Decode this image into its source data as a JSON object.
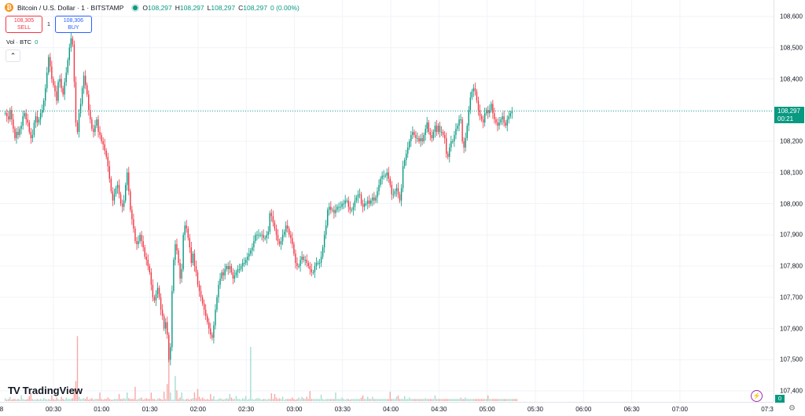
{
  "header": {
    "symbol_title": "Bitcoin / U.S. Dollar · 1 · BITSTAMP",
    "ohlc": [
      {
        "k": "O",
        "v": "108,297"
      },
      {
        "k": "H",
        "v": "108,297"
      },
      {
        "k": "L",
        "v": "108,297"
      },
      {
        "k": "C",
        "v": "108,297"
      }
    ],
    "change": "0 (0.00%)",
    "icon": "bitcoin-icon"
  },
  "trade": {
    "sell_price": "108,305",
    "sell_label": "SELL",
    "spread": "1",
    "buy_price": "108,306",
    "buy_label": "BUY"
  },
  "volume": {
    "label": "Vol · BTC",
    "value": "0",
    "axis_label": "0"
  },
  "last_price": {
    "price": "108,297",
    "countdown": "00:21"
  },
  "brand": "TradingView",
  "colors": {
    "up": "#089981",
    "down": "#f23645",
    "vol_up": "#a7dccf",
    "vol_down": "#f7a9a7"
  },
  "price_axis_labels": [
    "108,600",
    "108,500",
    "108,400",
    "108,300",
    "108,200",
    "108,100",
    "108,000",
    "107,900",
    "107,800",
    "107,700",
    "107,600",
    "107,500",
    "107,400"
  ],
  "time_axis": {
    "edge_left": "8",
    "labels": [
      "00:30",
      "01:00",
      "01:30",
      "02:00",
      "02:30",
      "03:00",
      "03:30",
      "04:00",
      "04:30",
      "05:00",
      "05:30",
      "06:00",
      "06:30",
      "07:00"
    ],
    "edge_right": "07:3"
  },
  "chart_data": {
    "type": "candlestick",
    "title": "Bitcoin / U.S. Dollar · 1 · BITSTAMP",
    "ylim": [
      107360,
      108640
    ],
    "start_time": "00:08",
    "interval_minutes": 1,
    "closes": [
      108290,
      108280,
      108270,
      108300,
      108270,
      108240,
      108210,
      108230,
      108220,
      108240,
      108250,
      108280,
      108290,
      108270,
      108260,
      108230,
      108210,
      108220,
      108260,
      108280,
      108260,
      108270,
      108290,
      108300,
      108330,
      108370,
      108420,
      108470,
      108440,
      108400,
      108380,
      108360,
      108330,
      108390,
      108400,
      108370,
      108350,
      108390,
      108420,
      108460,
      108500,
      108530,
      108510,
      108390,
      108260,
      108230,
      108290,
      108320,
      108370,
      108410,
      108380,
      108350,
      108300,
      108270,
      108240,
      108230,
      108250,
      108270,
      108230,
      108220,
      108200,
      108190,
      108170,
      108150,
      108120,
      108080,
      108040,
      108010,
      108030,
      108050,
      108060,
      108030,
      108000,
      107990,
      108010,
      108060,
      108100,
      108040,
      107980,
      107950,
      107920,
      107880,
      107870,
      107880,
      107900,
      107880,
      107860,
      107830,
      107820,
      107800,
      107780,
      107740,
      107700,
      107690,
      107710,
      107730,
      107700,
      107660,
      107640,
      107600,
      107620,
      107580,
      107500,
      107540,
      107720,
      107820,
      107870,
      107850,
      107810,
      107760,
      107790,
      107900,
      107930,
      107920,
      107890,
      107860,
      107810,
      107840,
      107800,
      107780,
      107740,
      107720,
      107700,
      107680,
      107660,
      107640,
      107620,
      107600,
      107580,
      107570,
      107610,
      107660,
      107700,
      107740,
      107760,
      107780,
      107770,
      107790,
      107800,
      107790,
      107800,
      107780,
      107760,
      107770,
      107780,
      107790,
      107790,
      107800,
      107810,
      107810,
      107820,
      107830,
      107840,
      107850,
      107860,
      107880,
      107900,
      107900,
      107900,
      107900,
      107900,
      107890,
      107890,
      107900,
      107910,
      107970,
      107960,
      107940,
      107920,
      107900,
      107880,
      107870,
      107880,
      107900,
      107910,
      107930,
      107920,
      107900,
      107890,
      107870,
      107840,
      107810,
      107800,
      107800,
      107820,
      107830,
      107820,
      107820,
      107810,
      107800,
      107790,
      107780,
      107780,
      107800,
      107810,
      107810,
      107810,
      107830,
      107860,
      107900,
      107930,
      107980,
      107990,
      107980,
      107980,
      107970,
      107980,
      107990,
      107990,
      107990,
      108000,
      108000,
      108010,
      108010,
      107990,
      107980,
      107980,
      107990,
      108010,
      108020,
      108030,
      108030,
      108000,
      107990,
      108000,
      108000,
      108010,
      108000,
      108010,
      108020,
      108010,
      108020,
      108040,
      108060,
      108080,
      108090,
      108090,
      108090,
      108100,
      108080,
      108060,
      108030,
      108030,
      108040,
      108050,
      108030,
      108010,
      108050,
      108120,
      108140,
      108160,
      108180,
      108200,
      108220,
      108230,
      108220,
      108210,
      108210,
      108200,
      108210,
      108200,
      108220,
      108240,
      108260,
      108230,
      108220,
      108210,
      108230,
      108250,
      108230,
      108250,
      108230,
      108230,
      108220,
      108210,
      108160,
      108150,
      108180,
      108200,
      108200,
      108220,
      108240,
      108250,
      108270,
      108270,
      108200,
      108180,
      108210,
      108250,
      108300,
      108340,
      108360,
      108370,
      108360,
      108330,
      108300,
      108280,
      108270,
      108260,
      108290,
      108300,
      108290,
      108300,
      108320,
      108290,
      108270,
      108260,
      108250,
      108260,
      108270,
      108280,
      108260,
      108250,
      108270,
      108280,
      108290,
      108297
    ],
    "volumes": [
      4,
      2,
      3,
      6,
      2,
      3,
      3,
      2,
      3,
      2,
      8,
      3,
      2,
      2,
      3,
      7,
      11,
      3,
      2,
      2,
      3,
      2,
      3,
      2,
      4,
      3,
      2,
      3,
      2,
      8,
      3,
      2,
      5,
      3,
      2,
      6,
      3,
      2,
      5,
      3,
      3,
      3,
      4,
      18,
      28,
      91,
      6,
      3,
      3,
      4,
      3,
      6,
      2,
      3,
      4,
      2,
      3,
      3,
      3,
      12,
      3,
      2,
      3,
      3,
      5,
      3,
      2,
      2,
      3,
      3,
      3,
      10,
      3,
      3,
      4,
      3,
      12,
      4,
      3,
      3,
      3,
      20,
      2,
      3,
      4,
      5,
      2,
      3,
      4,
      3,
      3,
      12,
      3,
      3,
      2,
      3,
      4,
      3,
      2,
      13,
      3,
      24,
      80,
      12,
      2,
      2,
      35,
      15,
      3,
      5,
      12,
      3,
      2,
      3,
      3,
      2,
      3,
      4,
      12,
      4,
      17,
      6,
      3,
      5,
      3,
      2,
      3,
      2,
      10,
      3,
      7,
      2,
      2,
      3,
      4,
      3,
      2,
      3,
      4,
      3,
      10,
      5,
      3,
      3,
      7,
      3,
      3,
      2,
      4,
      3,
      7,
      2,
      3,
      76,
      3,
      2,
      3,
      4,
      4,
      3,
      2,
      3,
      3,
      2,
      3,
      3,
      11,
      3,
      10,
      5,
      3,
      4,
      3,
      6,
      2,
      3,
      3,
      3,
      3,
      5,
      3,
      2,
      3,
      5,
      3,
      6,
      4,
      3,
      6,
      3,
      14,
      3,
      3,
      3,
      3,
      3,
      3,
      9,
      3,
      2,
      3,
      3,
      3,
      3,
      3,
      3,
      12,
      3,
      3,
      3,
      5,
      3,
      2,
      3,
      3,
      2,
      3,
      3,
      3,
      3,
      3,
      3,
      5,
      8,
      3,
      3,
      6,
      3,
      3,
      6,
      3,
      3,
      3,
      3,
      3,
      3,
      3,
      3,
      3,
      3,
      13,
      3,
      3,
      3,
      6,
      8,
      3,
      3,
      3,
      7,
      3,
      3,
      5,
      3,
      3,
      3,
      3,
      3,
      3,
      3,
      3,
      3,
      4,
      3,
      3,
      3,
      3,
      3,
      8,
      3,
      3,
      3,
      3,
      3,
      3,
      3,
      3,
      3,
      3,
      3,
      3,
      3,
      3,
      3,
      5,
      3,
      3,
      5,
      3,
      3,
      3,
      3,
      3,
      3,
      3,
      3,
      3,
      3,
      3,
      3,
      3,
      8,
      3,
      3,
      3,
      3,
      3,
      3,
      3,
      3,
      3,
      3,
      3,
      3,
      3,
      3,
      3,
      3,
      3,
      3,
      0
    ],
    "volume_ylim": [
      0,
      110
    ]
  }
}
